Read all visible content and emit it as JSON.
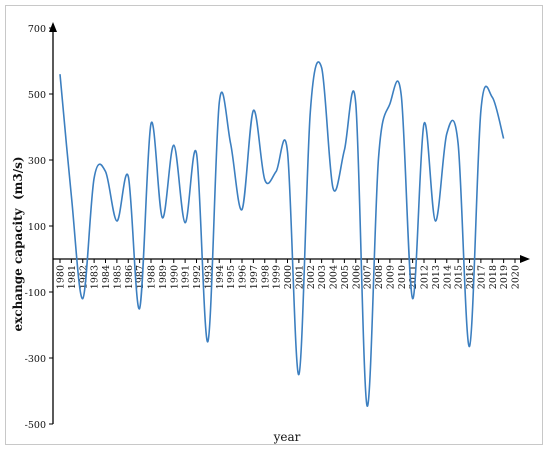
{
  "chart_data": {
    "type": "line",
    "xlabel": "year",
    "ylabel": "exchange capacity  (m3/s)",
    "ylim": [
      -500,
      700
    ],
    "y_ticks": [
      700,
      500,
      300,
      100,
      -100,
      -300,
      -500
    ],
    "grid": false,
    "legend": "none",
    "line_color": "#3c7fc0",
    "categories": [
      "1980",
      "1981",
      "1982",
      "1983",
      "1984",
      "1985",
      "1986",
      "1987",
      "1988",
      "1989",
      "1990",
      "1991",
      "1992",
      "1993",
      "1994",
      "1995",
      "1996",
      "1997",
      "1998",
      "1999",
      "2000",
      "2001",
      "2002",
      "2003",
      "2004",
      "2005",
      "2006",
      "2007",
      "2008",
      "2009",
      "2010",
      "2011",
      "2012",
      "2013",
      "2014",
      "2015",
      "2016",
      "2017",
      "2018",
      "2019",
      "2020"
    ],
    "values": [
      560,
      190,
      -120,
      245,
      265,
      115,
      250,
      -150,
      410,
      125,
      345,
      110,
      320,
      -250,
      475,
      350,
      150,
      450,
      240,
      265,
      325,
      -350,
      445,
      580,
      215,
      330,
      470,
      -445,
      305,
      470,
      495,
      -120,
      410,
      115,
      380,
      350,
      -265,
      450,
      490,
      365,
      null
    ]
  }
}
